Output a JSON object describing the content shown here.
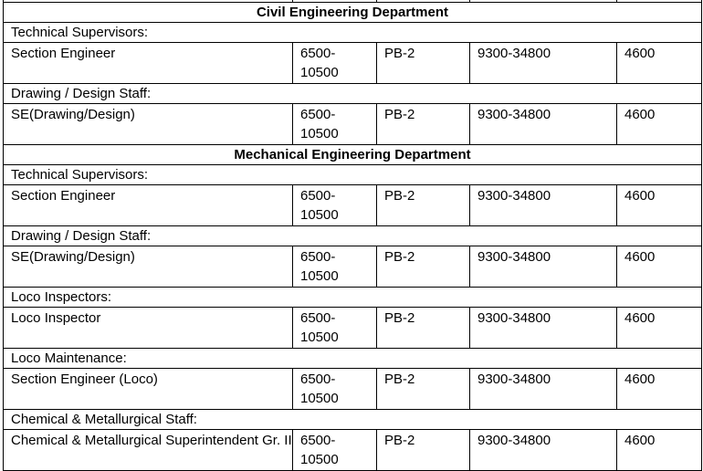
{
  "table": {
    "sections": [
      {
        "department": "Civil Engineering Department",
        "groups": [
          {
            "group_label": "Technical Supervisors:",
            "posts": [
              {
                "designation": "Section Engineer",
                "pre_revised_scale": "6500-10500",
                "pre_revised_line1": "6500-",
                "pre_revised_line2": "10500",
                "pay_band": "PB-2",
                "pay_band_range": "9300-34800",
                "grade_pay": "4600"
              }
            ]
          },
          {
            "group_label": "Drawing / Design Staff:",
            "posts": [
              {
                "designation": "SE(Drawing/Design)",
                "pre_revised_scale": "6500-10500",
                "pre_revised_line1": "6500-",
                "pre_revised_line2": "10500",
                "pay_band": "PB-2",
                "pay_band_range": "9300-34800",
                "grade_pay": "4600"
              }
            ]
          }
        ]
      },
      {
        "department": "Mechanical Engineering Department",
        "groups": [
          {
            "group_label": "Technical Supervisors:",
            "posts": [
              {
                "designation": "Section Engineer",
                "pre_revised_scale": "6500-10500",
                "pre_revised_line1": "6500-",
                "pre_revised_line2": "10500",
                "pay_band": "PB-2",
                "pay_band_range": "9300-34800",
                "grade_pay": "4600"
              }
            ]
          },
          {
            "group_label": "Drawing / Design Staff:",
            "posts": [
              {
                "designation": "SE(Drawing/Design)",
                "pre_revised_scale": "6500-10500",
                "pre_revised_line1": "6500-",
                "pre_revised_line2": "10500",
                "pay_band": "PB-2",
                "pay_band_range": "9300-34800",
                "grade_pay": "4600"
              }
            ]
          },
          {
            "group_label": "Loco Inspectors:",
            "posts": [
              {
                "designation": "Loco Inspector",
                "pre_revised_scale": "6500-10500",
                "pre_revised_line1": "6500-",
                "pre_revised_line2": "10500",
                "pay_band": "PB-2",
                "pay_band_range": "9300-34800",
                "grade_pay": "4600"
              }
            ]
          },
          {
            "group_label": "Loco Maintenance:",
            "posts": [
              {
                "designation": "Section Engineer (Loco)",
                "pre_revised_scale": "6500-10500",
                "pre_revised_line1": "6500-",
                "pre_revised_line2": "10500",
                "pay_band": "PB-2",
                "pay_band_range": "9300-34800",
                "grade_pay": "4600"
              }
            ]
          },
          {
            "group_label": "Chemical & Metallurgical Staff:",
            "posts": [
              {
                "designation": "Chemical & Metallurgical Superintendent Gr. II",
                "pre_revised_scale": "6500-10500",
                "pre_revised_line1": "6500-",
                "pre_revised_line2": "10500",
                "pay_band": "PB-2",
                "pay_band_range": "9300-34800",
                "grade_pay": "4600"
              }
            ]
          }
        ]
      }
    ]
  }
}
